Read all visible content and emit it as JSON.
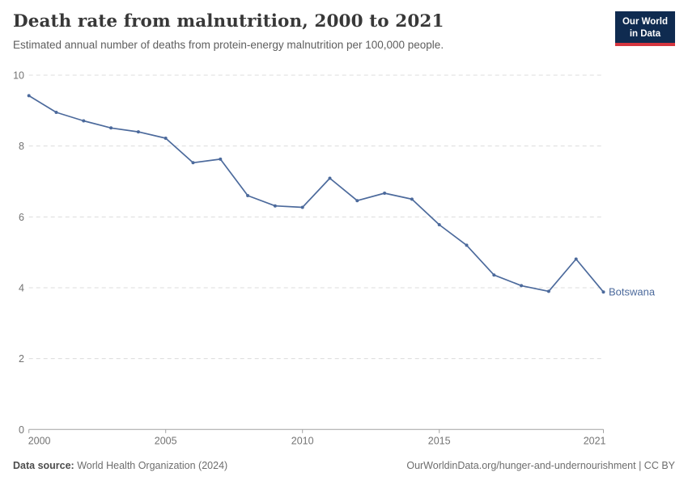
{
  "header": {
    "title": "Death rate from malnutrition, 2000 to 2021",
    "subtitle": "Estimated annual number of deaths from protein-energy malnutrition per 100,000 people.",
    "logo": {
      "line1": "Our World",
      "line2": "in Data"
    }
  },
  "footer": {
    "datasource_label": "Data source:",
    "datasource_value": "World Health Organization (2024)",
    "credit": "OurWorldinData.org/hunger-and-undernourishment | CC BY"
  },
  "chart_data": {
    "type": "line",
    "title": "Death rate from malnutrition, 2000 to 2021",
    "xlabel": "",
    "ylabel": "",
    "x": [
      2000,
      2001,
      2002,
      2003,
      2004,
      2005,
      2006,
      2007,
      2008,
      2009,
      2010,
      2011,
      2012,
      2013,
      2014,
      2015,
      2016,
      2017,
      2018,
      2019,
      2020,
      2021
    ],
    "series": [
      {
        "name": "Botswana",
        "color": "#4c6a9c",
        "values": [
          9.42,
          8.95,
          8.71,
          8.51,
          8.4,
          8.22,
          7.53,
          7.63,
          6.6,
          6.31,
          6.27,
          7.09,
          6.46,
          6.67,
          6.5,
          5.78,
          5.2,
          4.36,
          4.06,
          3.9,
          4.81,
          3.88
        ]
      }
    ],
    "xlim": [
      2000,
      2021
    ],
    "ylim": [
      0,
      10
    ],
    "yticks": [
      0,
      2,
      4,
      6,
      8,
      10
    ],
    "xticks": [
      2000,
      2005,
      2010,
      2015,
      2021
    ],
    "grid": "horizontal-dashed",
    "legend": "entity-label-at-line-end",
    "colors": {
      "grid": "#dcdcdc",
      "axis": "#a3a3a3",
      "tick_label": "#737373"
    }
  }
}
